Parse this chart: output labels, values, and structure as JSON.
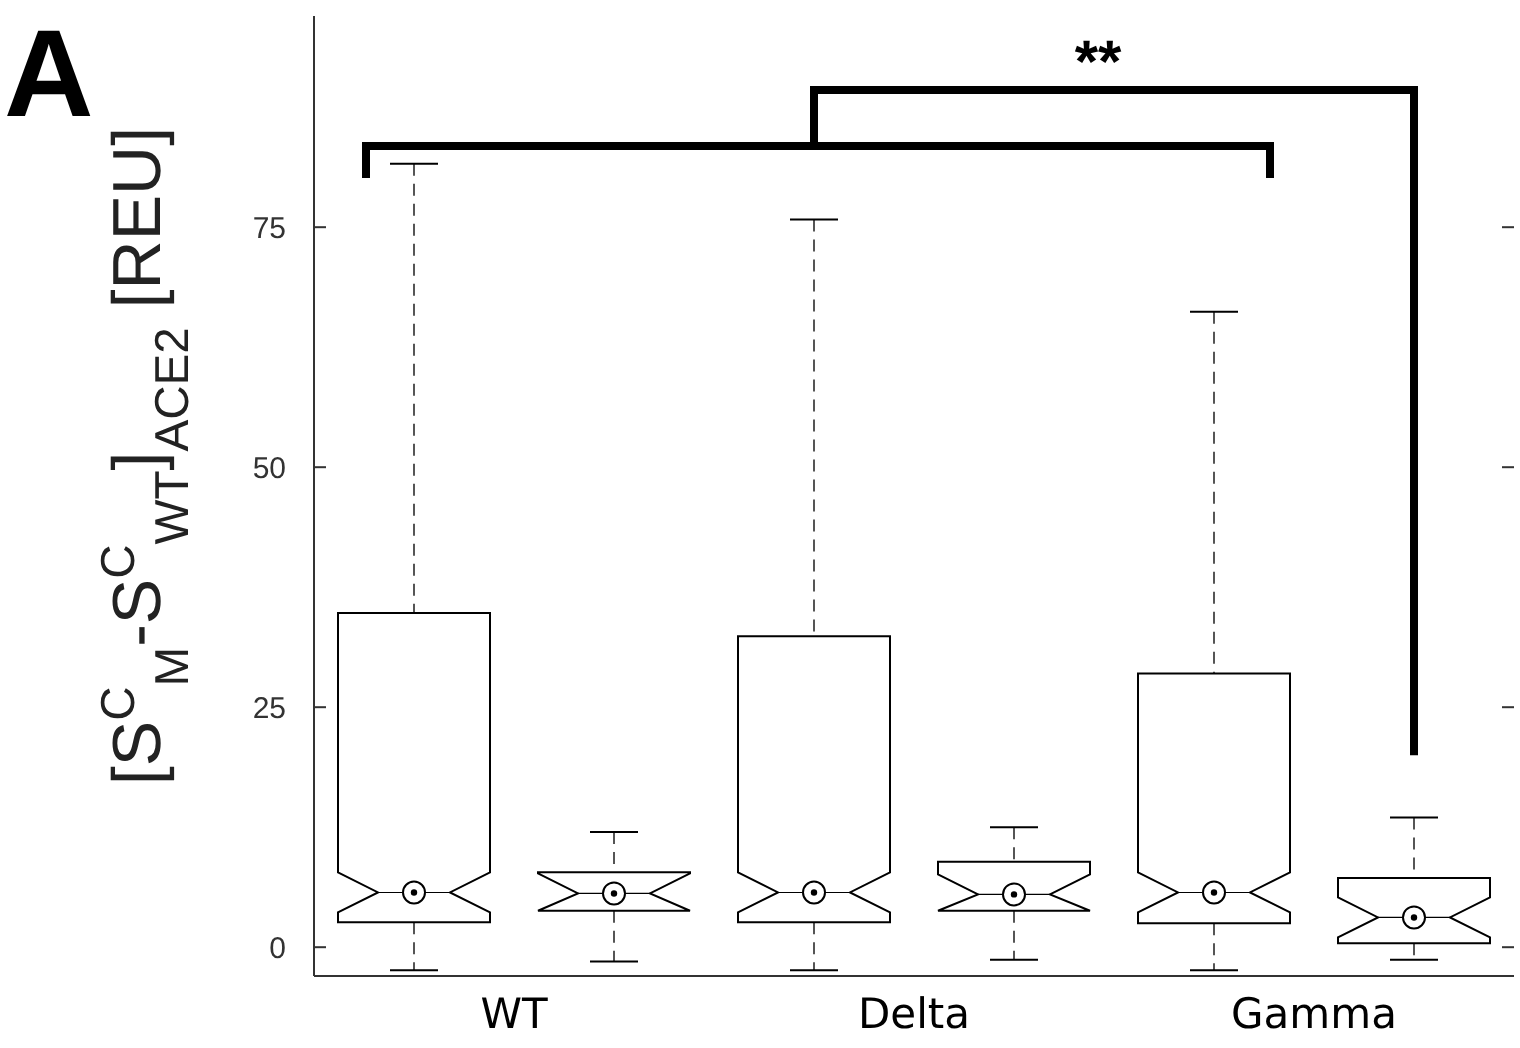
{
  "chart_data": {
    "type": "box",
    "categories": [
      "WT",
      "Delta",
      "Gamma"
    ],
    "ylabel": "[S$^{C}$$_{M}$-S$^{C}$$_{WT}$]$_{ACE2}$ [REU]",
    "ylim": [
      -3,
      97
    ],
    "yticks": [
      0,
      25,
      50,
      75
    ],
    "annotations": [
      "A",
      "**"
    ],
    "series": [
      {
        "color": "#000000",
        "boxes": [
          {
            "low": -2.4,
            "q1": 2.6,
            "median": 5.7,
            "q3": 34.8,
            "high": 81.6
          },
          {
            "low": -2.4,
            "q1": 2.6,
            "median": 5.7,
            "q3": 32.4,
            "high": 75.8
          },
          {
            "low": -2.4,
            "q1": 2.5,
            "median": 5.7,
            "q3": 28.5,
            "high": 66.2
          }
        ]
      },
      {
        "color": "#000000",
        "boxes": [
          {
            "low": -1.5,
            "q1": 3.8,
            "median": 5.6,
            "q3": 7.8,
            "high": 12
          },
          {
            "low": -1.3,
            "q1": 3.8,
            "median": 5.5,
            "q3": 8.9,
            "high": 12.5
          },
          {
            "low": -1.3,
            "q1": 0.4,
            "median": 3.1,
            "q3": 7.2,
            "high": 13.5
          }
        ]
      }
    ]
  }
}
